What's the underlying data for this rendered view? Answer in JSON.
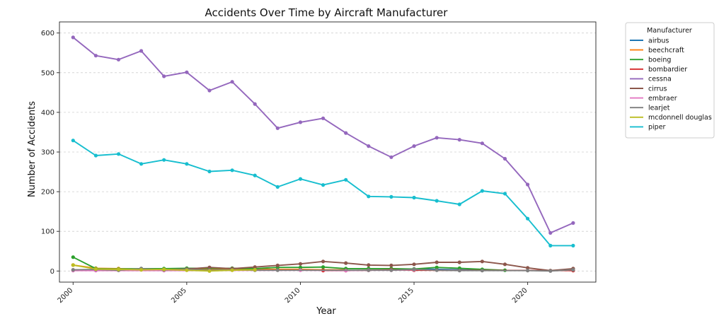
{
  "chart_data": {
    "type": "line",
    "title": "Accidents Over Time by Aircraft Manufacturer",
    "xlabel": "Year",
    "ylabel": "Number of Accidents",
    "xlim": [
      1999.4,
      2023
    ],
    "ylim": [
      -28,
      628
    ],
    "x_ticks": [
      2000,
      2005,
      2010,
      2015,
      2020
    ],
    "y_ticks": [
      0,
      100,
      200,
      300,
      400,
      500,
      600
    ],
    "grid": "horizontal dashed",
    "legend": {
      "title": "Manufacturer",
      "placement": "outside right"
    },
    "series": [
      {
        "name": "airbus",
        "color": "#1f77b4",
        "x": [
          2015,
          2016,
          2017,
          2018
        ],
        "values": [
          5,
          4,
          3,
          2
        ]
      },
      {
        "name": "beechcraft",
        "color": "#ff7f0e",
        "x": [
          2000,
          2001,
          2002,
          2003,
          2004,
          2005,
          2006,
          2007,
          2008,
          2009,
          2010,
          2011,
          2012
        ],
        "values": [
          15,
          7,
          6,
          5,
          5,
          4,
          4,
          4,
          4,
          4,
          4,
          3,
          3
        ]
      },
      {
        "name": "boeing",
        "color": "#2ca02c",
        "x": [
          2000,
          2001,
          2002,
          2003,
          2004,
          2005,
          2006,
          2007,
          2008,
          2009,
          2010,
          2011,
          2012,
          2013,
          2014,
          2015,
          2016,
          2017,
          2018,
          2019
        ],
        "values": [
          35,
          6,
          5,
          6,
          6,
          7,
          7,
          7,
          6,
          9,
          9,
          10,
          6,
          6,
          6,
          5,
          9,
          7,
          4,
          2
        ]
      },
      {
        "name": "bombardier",
        "color": "#d62728",
        "x": [
          2011,
          2012,
          2013,
          2014,
          2015,
          2022
        ],
        "values": [
          1,
          1,
          2,
          3,
          2,
          1
        ]
      },
      {
        "name": "cessna",
        "color": "#9467bd",
        "x": [
          2000,
          2001,
          2002,
          2003,
          2004,
          2005,
          2006,
          2007,
          2008,
          2009,
          2010,
          2011,
          2012,
          2013,
          2014,
          2015,
          2016,
          2017,
          2018,
          2019,
          2020,
          2021,
          2022
        ],
        "values": [
          589,
          543,
          533,
          555,
          491,
          501,
          455,
          477,
          421,
          360,
          375,
          385,
          348,
          315,
          287,
          315,
          336,
          331,
          322,
          283,
          218,
          96,
          121
        ]
      },
      {
        "name": "cirrus",
        "color": "#8c564b",
        "x": [
          2001,
          2002,
          2003,
          2004,
          2005,
          2006,
          2007,
          2008,
          2009,
          2010,
          2011,
          2012,
          2013,
          2014,
          2015,
          2016,
          2017,
          2018,
          2019,
          2020,
          2021,
          2022
        ],
        "values": [
          3,
          2,
          4,
          3,
          5,
          9,
          6,
          10,
          14,
          18,
          24,
          20,
          15,
          14,
          17,
          22,
          22,
          24,
          17,
          8,
          1,
          6
        ]
      },
      {
        "name": "embraer",
        "color": "#e377c2",
        "x": [
          2000,
          2001,
          2004,
          2010,
          2012,
          2013,
          2014,
          2015
        ],
        "values": [
          1,
          1,
          1,
          2,
          1,
          2,
          2,
          3
        ]
      },
      {
        "name": "learjet",
        "color": "#7f7f7f",
        "x": [
          2000,
          2001,
          2002,
          2003,
          2004,
          2005,
          2006,
          2007,
          2008,
          2009,
          2013,
          2014,
          2015,
          2016,
          2017,
          2018,
          2020,
          2021,
          2022
        ],
        "values": [
          3,
          4,
          2,
          6,
          3,
          4,
          2,
          3,
          2,
          2,
          2,
          2,
          4,
          2,
          1,
          1,
          1,
          0,
          3
        ]
      },
      {
        "name": "mcdonnell douglas",
        "color": "#bcbd22",
        "x": [
          2000,
          2001,
          2002,
          2003,
          2004,
          2005,
          2006,
          2007,
          2008
        ],
        "values": [
          15,
          5,
          4,
          3,
          4,
          2,
          0,
          2,
          3
        ]
      },
      {
        "name": "piper",
        "color": "#17becf",
        "x": [
          2000,
          2001,
          2002,
          2003,
          2004,
          2005,
          2006,
          2007,
          2008,
          2009,
          2010,
          2011,
          2012,
          2013,
          2014,
          2015,
          2016,
          2017,
          2018,
          2019,
          2020,
          2021,
          2022
        ],
        "values": [
          329,
          291,
          295,
          270,
          280,
          270,
          251,
          254,
          241,
          212,
          232,
          217,
          230,
          188,
          187,
          185,
          177,
          168,
          202,
          195,
          132,
          64,
          64
        ]
      }
    ]
  }
}
